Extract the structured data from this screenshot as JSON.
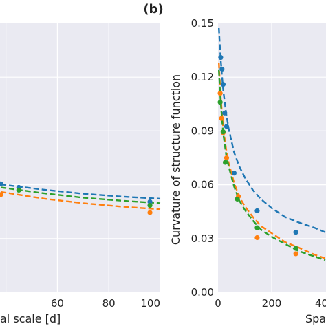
{
  "colors": {
    "plot_background": "#EAEAF2",
    "grid": "#FFFFFF",
    "blue": "#1F77B4",
    "orange": "#FF7F0E",
    "green": "#2CA02C"
  },
  "chart_data": [
    {
      "panel": "left (cropped)",
      "type": "scatter",
      "title": "",
      "xlabel": "al scale [d]",
      "ylabel": "",
      "x_ticks": [
        "60",
        "80",
        "100"
      ],
      "xlim": [
        37.7,
        100
      ],
      "ylim": [
        0.0,
        0.15
      ],
      "grid": true,
      "series": [
        {
          "color": "blue",
          "points": [
            [
              38,
              0.0605
            ],
            [
              45,
              0.0585
            ],
            [
              96,
              0.0505
            ]
          ],
          "fit": [
            [
              38,
              0.0602
            ],
            [
              55,
              0.0572
            ],
            [
              70,
              0.055
            ],
            [
              85,
              0.0534
            ],
            [
              100,
              0.0522
            ]
          ]
        },
        {
          "color": "orange",
          "points": [
            [
              38,
              0.0545
            ],
            [
              96,
              0.0445
            ]
          ],
          "fit": [
            [
              38,
              0.056
            ],
            [
              55,
              0.0522
            ],
            [
              70,
              0.0497
            ],
            [
              85,
              0.0478
            ],
            [
              100,
              0.0463
            ]
          ]
        },
        {
          "color": "green",
          "points": [
            [
              45,
              0.057
            ],
            [
              96,
              0.0485
            ]
          ],
          "fit": [
            [
              38,
              0.0585
            ],
            [
              55,
              0.0552
            ],
            [
              70,
              0.0528
            ],
            [
              85,
              0.0511
            ],
            [
              100,
              0.0497
            ]
          ]
        }
      ]
    },
    {
      "panel": "right",
      "type": "scatter",
      "title": "(b)",
      "xlabel": "Spa",
      "ylabel": "Curvature of structure function",
      "x_ticks": [
        "0",
        "200",
        "40"
      ],
      "y_ticks": [
        "0.00",
        "0.03",
        "0.06",
        "0.09",
        "0.12",
        "0.15"
      ],
      "xlim": [
        0,
        400
      ],
      "ylim": [
        0.0,
        0.15
      ],
      "grid": true,
      "series": [
        {
          "color": "blue",
          "points": [
            [
              10,
              0.131
            ],
            [
              15,
              0.1245
            ],
            [
              19,
              0.116
            ],
            [
              25,
              0.1
            ],
            [
              32,
              0.0925
            ],
            [
              60,
              0.0665
            ],
            [
              146,
              0.0455
            ],
            [
              290,
              0.0335
            ]
          ],
          "fit": [
            [
              3,
              0.1475
            ],
            [
              6,
              0.14
            ],
            [
              10,
              0.13
            ],
            [
              15,
              0.12
            ],
            [
              20,
              0.112
            ],
            [
              30,
              0.1
            ],
            [
              40,
              0.091
            ],
            [
              60,
              0.078
            ],
            [
              80,
              0.07
            ],
            [
              100,
              0.064
            ],
            [
              130,
              0.057
            ],
            [
              160,
              0.052
            ],
            [
              200,
              0.047
            ],
            [
              250,
              0.042
            ],
            [
              300,
              0.039
            ],
            [
              360,
              0.036
            ],
            [
              400,
              0.0335
            ]
          ]
        },
        {
          "color": "orange",
          "points": [
            [
              8,
              0.111
            ],
            [
              13,
              0.097
            ],
            [
              19,
              0.089
            ],
            [
              32,
              0.075
            ],
            [
              76,
              0.0535
            ],
            [
              146,
              0.0305
            ],
            [
              290,
              0.0215
            ]
          ],
          "fit": [
            [
              3,
              0.128
            ],
            [
              6,
              0.12
            ],
            [
              10,
              0.109
            ],
            [
              15,
              0.099
            ],
            [
              20,
              0.091
            ],
            [
              30,
              0.08
            ],
            [
              40,
              0.072
            ],
            [
              60,
              0.061
            ],
            [
              80,
              0.053
            ],
            [
              100,
              0.048
            ],
            [
              130,
              0.042
            ],
            [
              160,
              0.037
            ],
            [
              200,
              0.033
            ],
            [
              250,
              0.028
            ],
            [
              300,
              0.025
            ],
            [
              360,
              0.021
            ],
            [
              400,
              0.019
            ]
          ]
        },
        {
          "color": "green",
          "points": [
            [
              8,
              0.106
            ],
            [
              19,
              0.0895
            ],
            [
              27,
              0.0725
            ],
            [
              72,
              0.052
            ],
            [
              146,
              0.036
            ],
            [
              290,
              0.0245
            ]
          ],
          "fit": [
            [
              3,
              0.124
            ],
            [
              6,
              0.116
            ],
            [
              10,
              0.106
            ],
            [
              15,
              0.096
            ],
            [
              20,
              0.088
            ],
            [
              30,
              0.077
            ],
            [
              40,
              0.07
            ],
            [
              60,
              0.059
            ],
            [
              80,
              0.051
            ],
            [
              100,
              0.046
            ],
            [
              130,
              0.04
            ],
            [
              160,
              0.035
            ],
            [
              200,
              0.031
            ],
            [
              250,
              0.027
            ],
            [
              300,
              0.023
            ],
            [
              360,
              0.02
            ],
            [
              400,
              0.018
            ]
          ]
        }
      ]
    }
  ]
}
